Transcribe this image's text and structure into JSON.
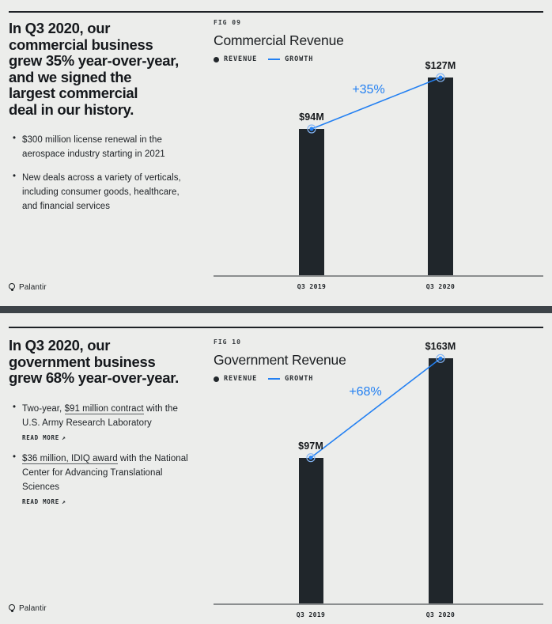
{
  "icons": {
    "bullet_marker": "•",
    "external_arrow": "↗"
  },
  "brand": {
    "logo_text": "Palantir"
  },
  "colors": {
    "accent_blue": "#2380f2",
    "bar": "#20262b",
    "background": "#ecedeb",
    "divider": "#3d4348"
  },
  "slides": [
    {
      "heading_lines": [
        "In Q3 2020, our",
        "commercial business",
        "grew 35% year-over-year,",
        "and we signed the",
        "largest commercial",
        "deal in our history."
      ],
      "bullets": [
        {
          "segments": [
            {
              "text": "$300 million license renewal in the aerospace industry starting in 2021"
            }
          ]
        },
        {
          "segments": [
            {
              "text": "New deals across a variety of verticals, including consumer goods, healthcare, and financial services"
            }
          ]
        }
      ]
    },
    {
      "heading_lines": [
        "In Q3 2020, our",
        "government business",
        "grew 68% year-over-year."
      ],
      "bullets": [
        {
          "segments": [
            {
              "text": "Two-year, "
            },
            {
              "text": "$91 million contract",
              "link": true
            },
            {
              "text": " with the U.S. Army Research Laboratory"
            }
          ],
          "read_more": "READ MORE"
        },
        {
          "segments": [
            {
              "text": "$36 million, IDIQ award",
              "link": true
            },
            {
              "text": " with the National Center for Advancing Translational Sciences"
            }
          ],
          "read_more": "READ MORE"
        }
      ]
    }
  ],
  "chart_data": [
    {
      "type": "bar",
      "fig_label": "FIG 09",
      "title": "Commercial Revenue",
      "legend": [
        "REVENUE",
        "GROWTH"
      ],
      "categories": [
        "Q3 2019",
        "Q3 2020"
      ],
      "values": [
        94,
        127
      ],
      "value_labels": [
        "$94M",
        "$127M"
      ],
      "growth_annotation": "+35%",
      "unit": "$M",
      "layout_hints": {
        "growth_line": "connects bar tops",
        "legend_position": "top-left",
        "grid": false
      }
    },
    {
      "type": "bar",
      "fig_label": "FIG 10",
      "title": "Government Revenue",
      "legend": [
        "REVENUE",
        "GROWTH"
      ],
      "categories": [
        "Q3 2019",
        "Q3 2020"
      ],
      "values": [
        97,
        163
      ],
      "value_labels": [
        "$97M",
        "$163M"
      ],
      "growth_annotation": "+68%",
      "unit": "$M",
      "layout_hints": {
        "growth_line": "connects bar tops",
        "legend_position": "top-left",
        "grid": false
      }
    }
  ]
}
